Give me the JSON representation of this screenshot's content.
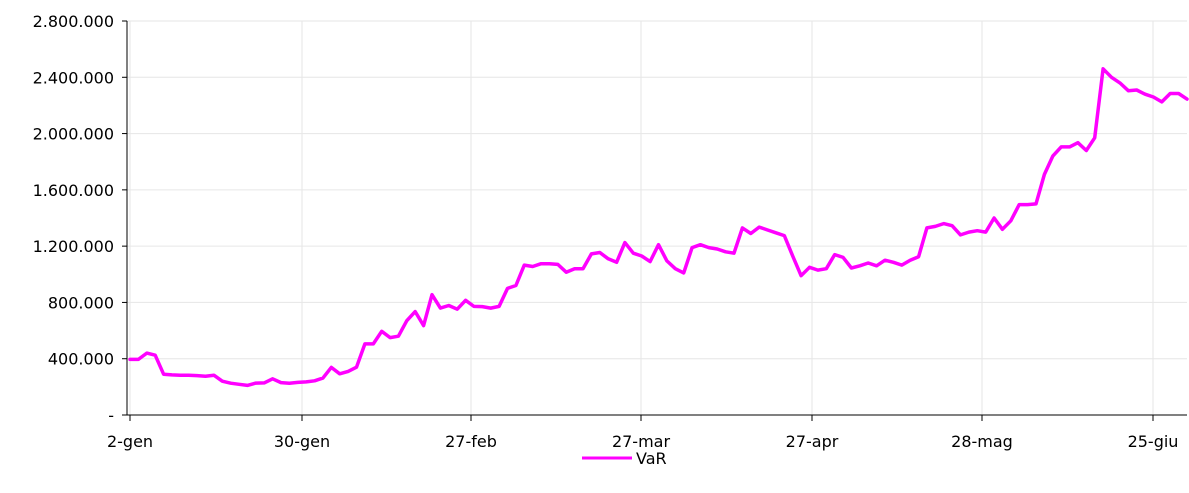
{
  "chart_data": {
    "type": "line",
    "title": "",
    "xlabel": "",
    "ylabel": "",
    "ylim": [
      0,
      2800000
    ],
    "grid": true,
    "legend_position": "bottom-center",
    "y_ticks": [
      {
        "value": 0,
        "label": "-"
      },
      {
        "value": 400000,
        "label": "400.000"
      },
      {
        "value": 800000,
        "label": "800.000"
      },
      {
        "value": 1200000,
        "label": "1.200.000"
      },
      {
        "value": 1600000,
        "label": "1.600.000"
      },
      {
        "value": 2000000,
        "label": "2.000.000"
      },
      {
        "value": 2400000,
        "label": "2.400.000"
      },
      {
        "value": 2800000,
        "label": "2.800.000"
      }
    ],
    "x_ticks": [
      "2-gen",
      "30-gen",
      "27-feb",
      "27-mar",
      "27-apr",
      "28-mag",
      "25-giu"
    ],
    "series": [
      {
        "name": "VaR",
        "color": "#ff00ff",
        "values": [
          395000,
          395000,
          440000,
          425000,
          290000,
          285000,
          283000,
          282000,
          280000,
          276000,
          283000,
          240000,
          226000,
          218000,
          210000,
          227000,
          228000,
          257000,
          230000,
          226000,
          232000,
          235000,
          243000,
          262000,
          338000,
          293000,
          310000,
          340000,
          505000,
          505000,
          595000,
          550000,
          560000,
          670000,
          735000,
          635000,
          855000,
          760000,
          778000,
          752000,
          815000,
          772000,
          770000,
          760000,
          772000,
          900000,
          920000,
          1065000,
          1055000,
          1075000,
          1075000,
          1070000,
          1015000,
          1040000,
          1040000,
          1145000,
          1155000,
          1110000,
          1085000,
          1225000,
          1150000,
          1130000,
          1090000,
          1210000,
          1095000,
          1040000,
          1010000,
          1190000,
          1210000,
          1190000,
          1180000,
          1160000,
          1150000,
          1330000,
          1290000,
          1335000,
          1315000,
          1295000,
          1275000,
          1130000,
          990000,
          1050000,
          1030000,
          1040000,
          1140000,
          1120000,
          1045000,
          1060000,
          1080000,
          1060000,
          1100000,
          1085000,
          1065000,
          1100000,
          1125000,
          1330000,
          1340000,
          1360000,
          1345000,
          1280000,
          1300000,
          1310000,
          1300000,
          1400000,
          1320000,
          1380000,
          1495000,
          1495000,
          1500000,
          1710000,
          1840000,
          1905000,
          1905000,
          1935000,
          1880000,
          1970000,
          2460000,
          2400000,
          2360000,
          2305000,
          2310000,
          2280000,
          2260000,
          2225000,
          2285000,
          2285000,
          2245000
        ]
      }
    ]
  }
}
